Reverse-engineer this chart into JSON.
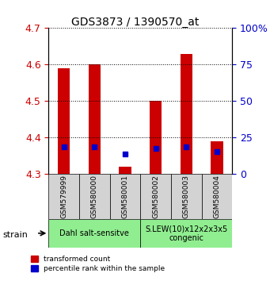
{
  "title": "GDS3873 / 1390570_at",
  "samples": [
    "GSM579999",
    "GSM580000",
    "GSM580001",
    "GSM580002",
    "GSM580003",
    "GSM580004"
  ],
  "red_values": [
    4.59,
    4.6,
    4.32,
    4.5,
    4.63,
    4.39
  ],
  "blue_values": [
    4.375,
    4.375,
    4.355,
    4.37,
    4.375,
    4.362
  ],
  "ylim_left": [
    4.3,
    4.7
  ],
  "ylim_right": [
    0,
    100
  ],
  "yticks_left": [
    4.3,
    4.4,
    4.5,
    4.6,
    4.7
  ],
  "yticks_right": [
    0,
    25,
    50,
    75,
    100
  ],
  "bar_base": 4.3,
  "groups": [
    {
      "label": "Dahl salt-sensitve",
      "indices": [
        0,
        1,
        2
      ],
      "color": "#90ee90"
    },
    {
      "label": "S.LEW(10)x12x2x3x5\ncongenic",
      "indices": [
        3,
        4,
        5
      ],
      "color": "#90ee90"
    }
  ],
  "group_box_color": "#90ee90",
  "sample_box_color": "#d3d3d3",
  "bar_color_red": "#cc0000",
  "bar_color_blue": "#0000cc",
  "legend_red": "transformed count",
  "legend_blue": "percentile rank within the sample",
  "strain_label": "strain",
  "xlabel": "",
  "ylabel_left_color": "#cc0000",
  "ylabel_right_color": "#0000cc",
  "grid_color": "black",
  "grid_linestyle": "dotted"
}
